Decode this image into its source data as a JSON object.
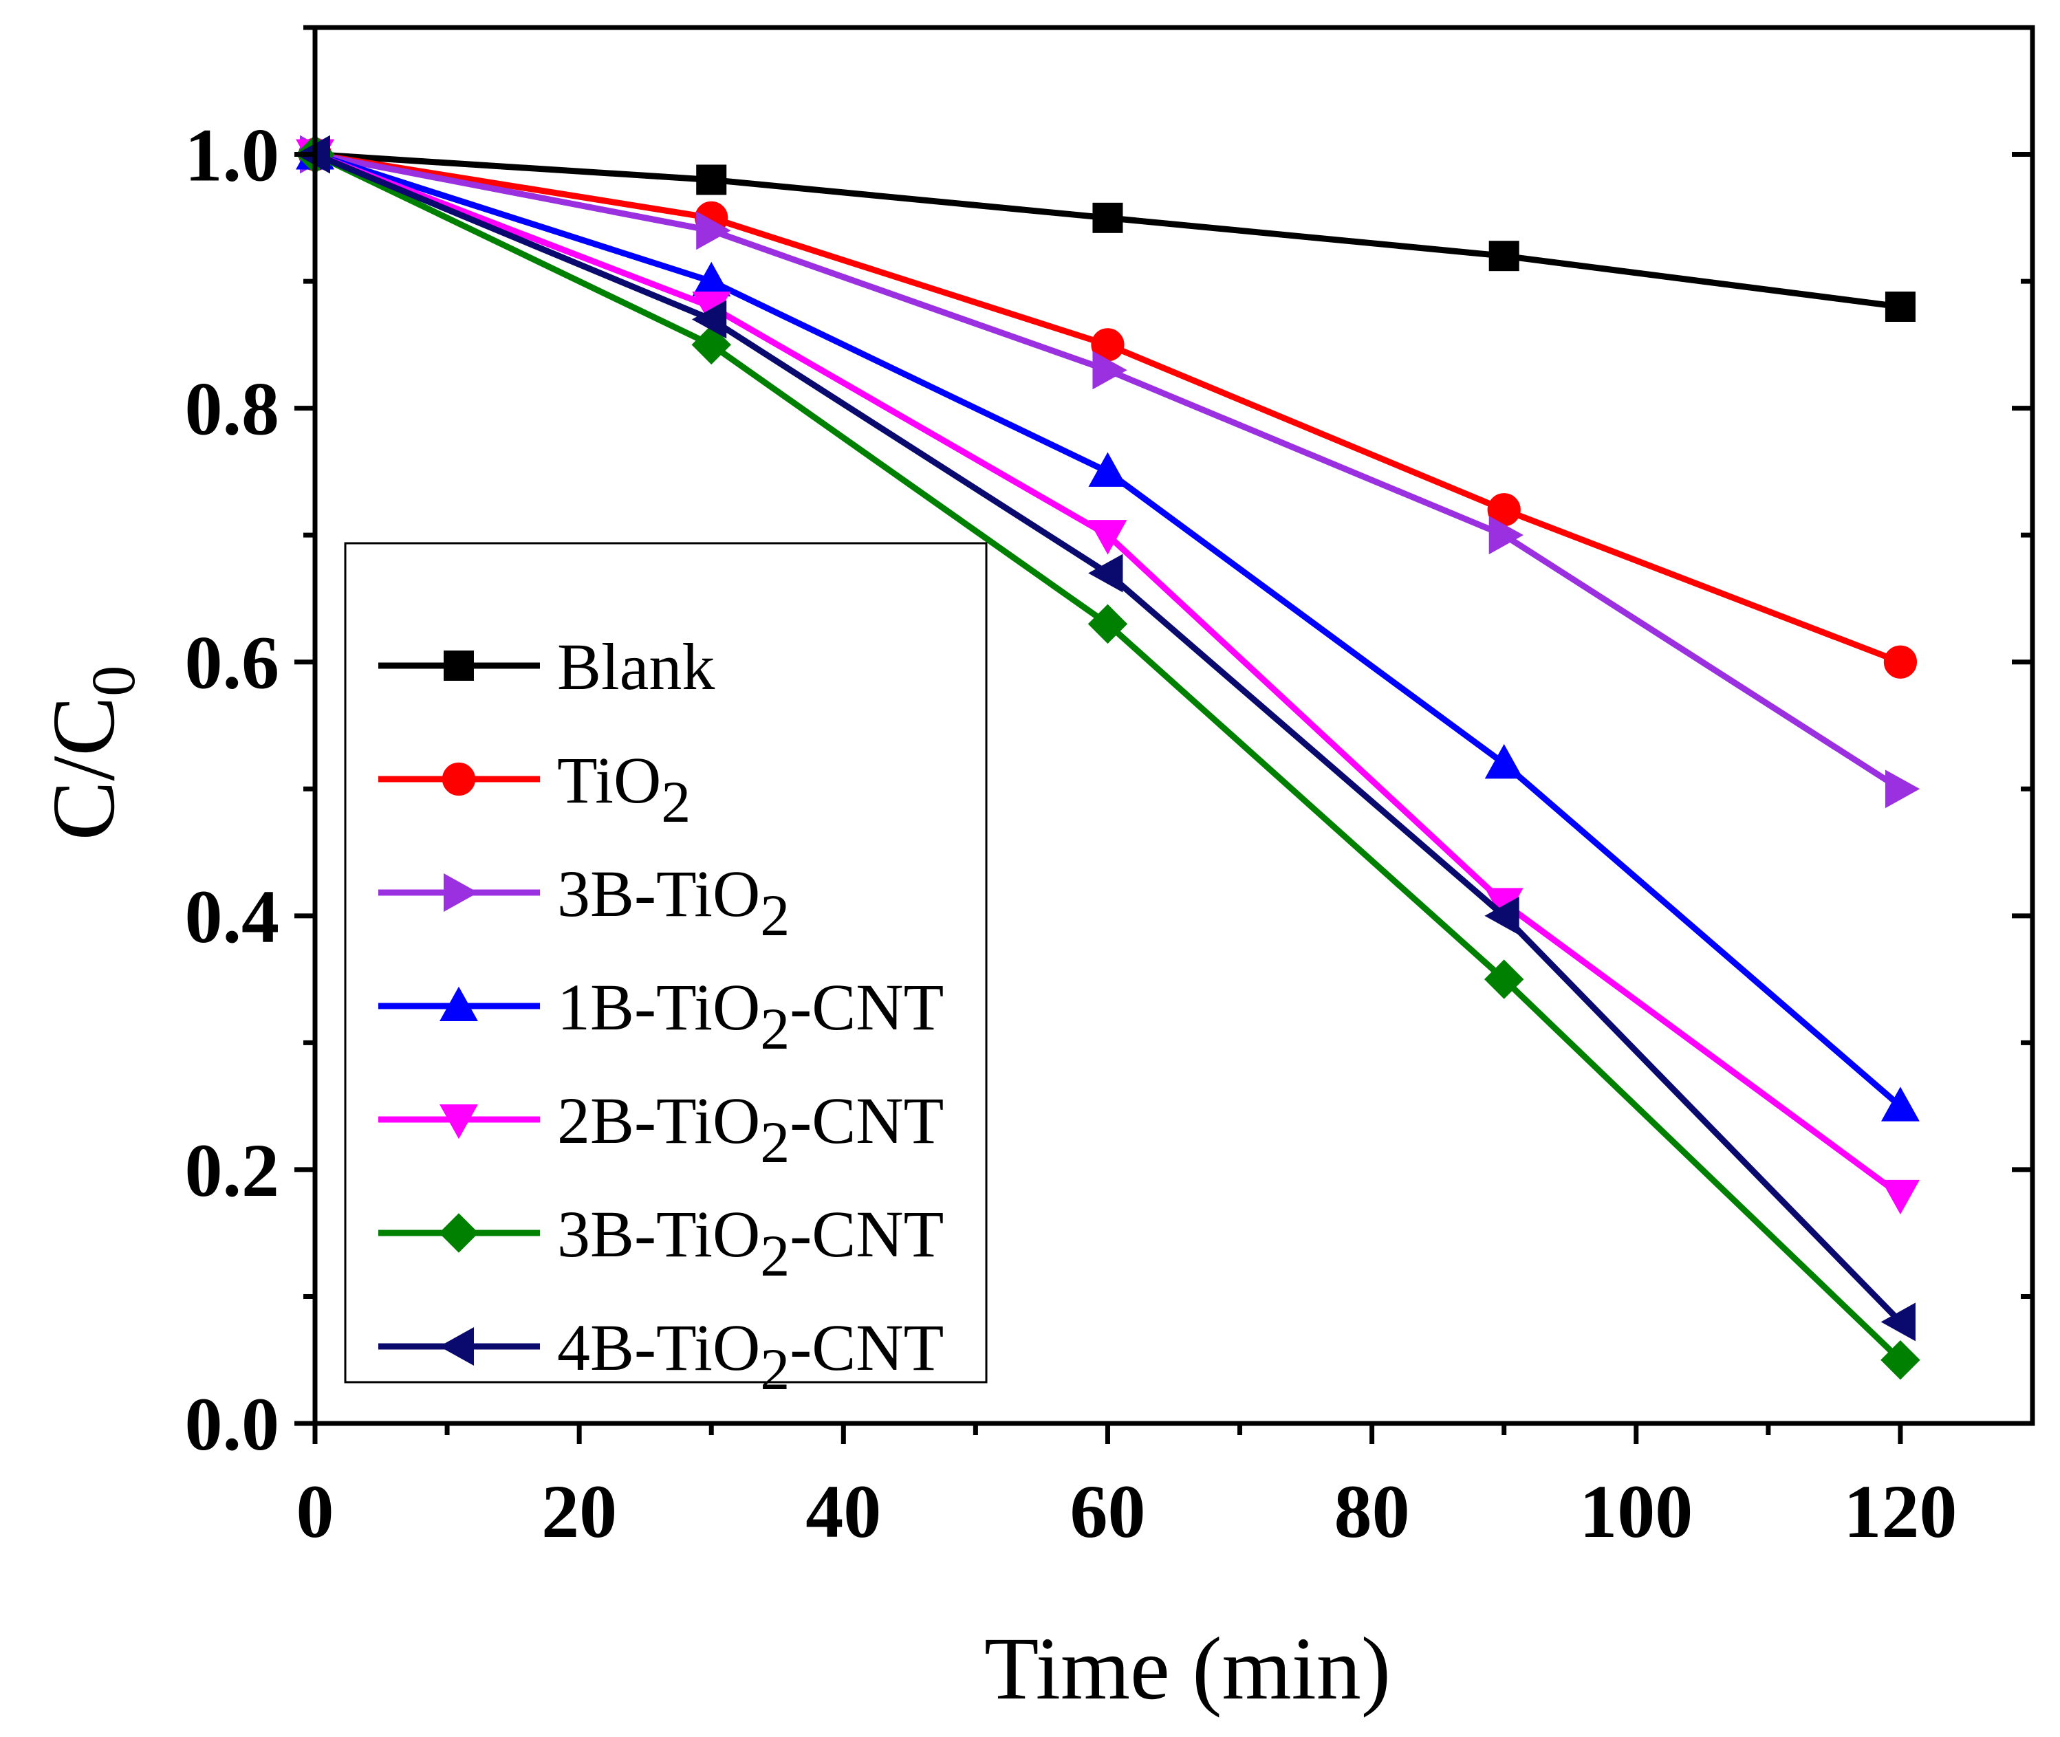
{
  "chart_data": {
    "type": "line",
    "title": "",
    "xlabel": "Time (min)",
    "ylabel": "C/C0",
    "ylabel_main": "C/C",
    "ylabel_sub": "0",
    "xlim": [
      0,
      130
    ],
    "ylim": [
      0,
      1.1
    ],
    "x_ticks": [
      0,
      20,
      40,
      60,
      80,
      100,
      120
    ],
    "x_tick_labels": [
      "0",
      "20",
      "40",
      "60",
      "80",
      "100",
      "120"
    ],
    "y_ticks": [
      0.0,
      0.2,
      0.4,
      0.6,
      0.8,
      1.0
    ],
    "y_tick_labels": [
      "0.0",
      "0.2",
      "0.4",
      "0.6",
      "0.8",
      "1.0"
    ],
    "grid": false,
    "legend_position": "left",
    "x": [
      0,
      30,
      60,
      90,
      120
    ],
    "series": [
      {
        "name": "Blank",
        "label_parts": [
          "Blank"
        ],
        "marker": "square",
        "color": "#000000",
        "values": [
          1.0,
          0.98,
          0.95,
          0.92,
          0.88
        ]
      },
      {
        "name": "TiO2",
        "label_parts": [
          "TiO",
          "2",
          ""
        ],
        "marker": "circle",
        "color": "#ff0000",
        "values": [
          1.0,
          0.95,
          0.85,
          0.72,
          0.6
        ]
      },
      {
        "name": "3B-TiO2",
        "label_parts": [
          "3B-TiO",
          "2",
          ""
        ],
        "marker": "triangle-right",
        "color": "#9b30e0",
        "values": [
          1.0,
          0.94,
          0.83,
          0.7,
          0.5
        ]
      },
      {
        "name": "1B-TiO2-CNT",
        "label_parts": [
          "1B-TiO",
          "2",
          "-CNT"
        ],
        "marker": "triangle-up",
        "color": "#0000ff",
        "values": [
          1.0,
          0.9,
          0.75,
          0.52,
          0.25
        ]
      },
      {
        "name": "2B-TiO2-CNT",
        "label_parts": [
          "2B-TiO",
          "2",
          "-CNT"
        ],
        "marker": "triangle-down",
        "color": "#ff00ff",
        "values": [
          1.0,
          0.88,
          0.7,
          0.41,
          0.18
        ]
      },
      {
        "name": "3B-TiO2-CNT",
        "label_parts": [
          "3B-TiO",
          "2",
          "-CNT"
        ],
        "marker": "diamond",
        "color": "#008000",
        "values": [
          1.0,
          0.85,
          0.63,
          0.35,
          0.05
        ]
      },
      {
        "name": "4B-TiO2-CNT",
        "label_parts": [
          "4B-TiO",
          "2",
          "-CNT"
        ],
        "marker": "triangle-left",
        "color": "#0a0a6e",
        "values": [
          1.0,
          0.87,
          0.67,
          0.4,
          0.08
        ]
      }
    ]
  }
}
